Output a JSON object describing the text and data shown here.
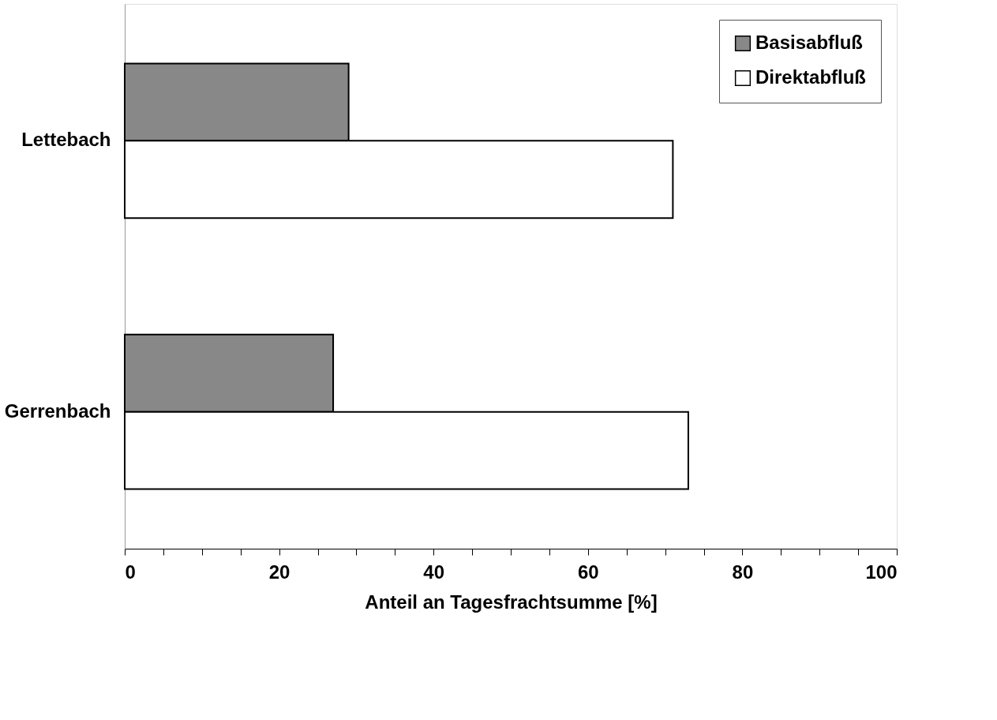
{
  "chart_data": {
    "type": "bar",
    "orientation": "horizontal",
    "xlabel": "Anteil an Tagesfrachtsumme [%]",
    "categories": [
      "Lettebach",
      "Gerrenbach"
    ],
    "series": [
      {
        "name": "Basisabfluß",
        "color": "#888888",
        "values": [
          29,
          27
        ]
      },
      {
        "name": "Direktabfluß",
        "color": "#ffffff",
        "values": [
          71,
          73
        ]
      }
    ],
    "xlim": [
      0,
      100
    ],
    "xticks": [
      0,
      {
        "value": 5,
        "label": null
      },
      {
        "value": 10,
        "label": null
      },
      {
        "value": 15,
        "label": null
      },
      20,
      {
        "value": 25,
        "label": null
      },
      {
        "value": 30,
        "label": null
      },
      {
        "value": 35,
        "label": null
      },
      40,
      {
        "value": 45,
        "label": null
      },
      {
        "value": 50,
        "label": null
      },
      {
        "value": 55,
        "label": null
      },
      60,
      {
        "value": 65,
        "label": null
      },
      {
        "value": 70,
        "label": null
      },
      {
        "value": 75,
        "label": null
      },
      80,
      {
        "value": 85,
        "label": null
      },
      {
        "value": 90,
        "label": null
      },
      {
        "value": 95,
        "label": null
      },
      100
    ],
    "grid": false,
    "legend": "top right"
  }
}
